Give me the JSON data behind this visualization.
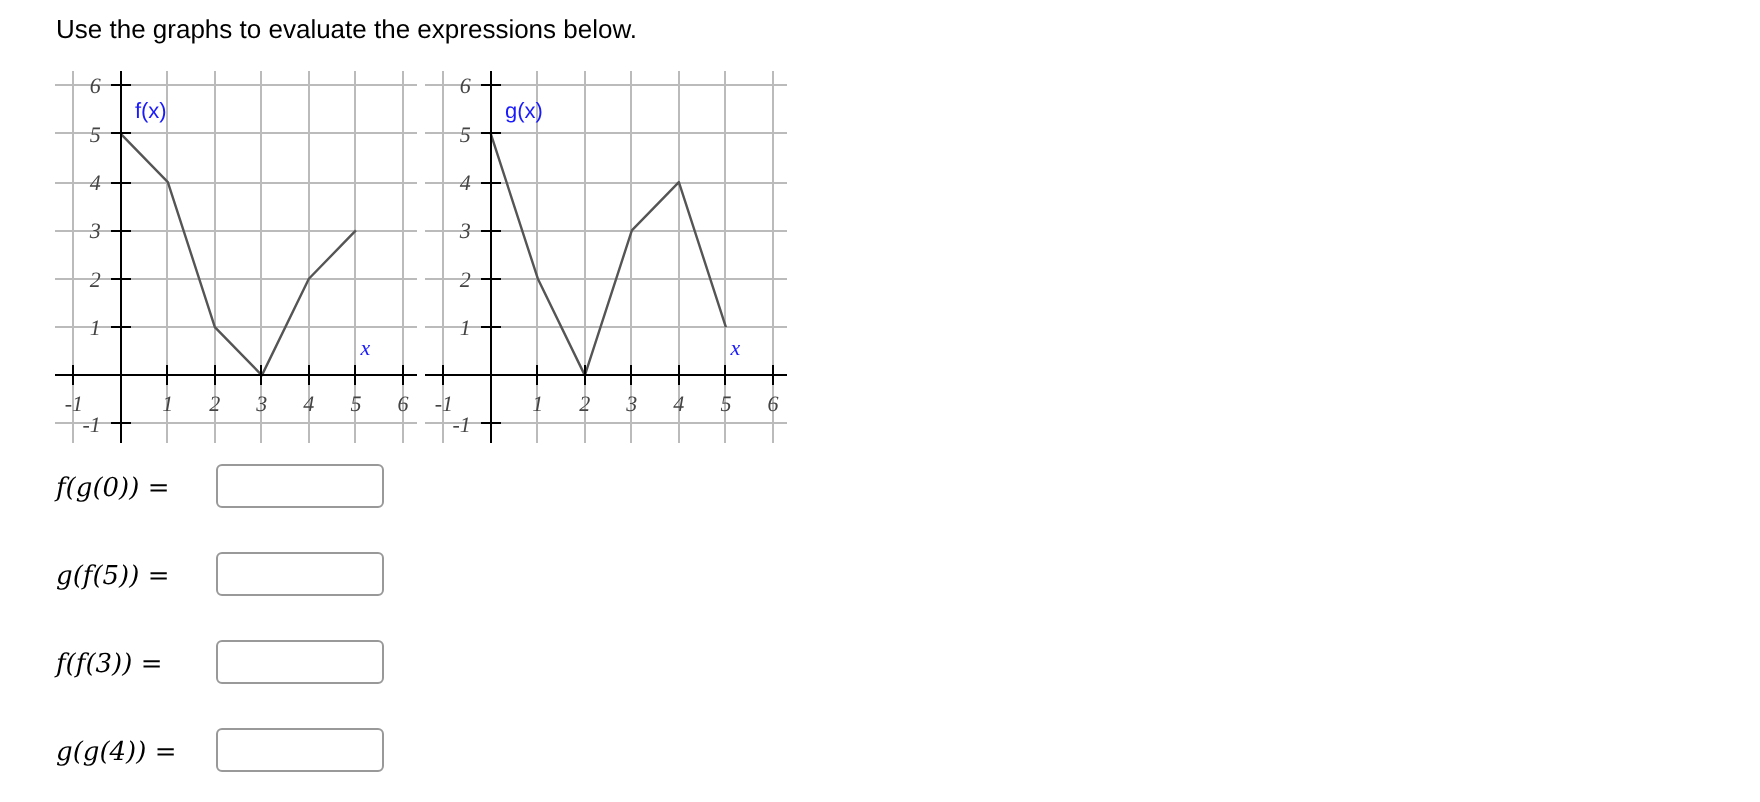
{
  "chart_data": [
    {
      "type": "line",
      "title": "Use the graphs to evaluate the expressions below.",
      "xlabel": "x",
      "x": [
        0,
        1,
        2,
        3,
        4,
        5
      ],
      "series": [
        {
          "name": "f(x)",
          "color": "#555555",
          "values": [
            5,
            4,
            1,
            0,
            2,
            3
          ]
        }
      ],
      "xlim": [
        -1.4,
        6.3
      ],
      "ylim": [
        -1.4,
        6.3
      ],
      "xticks": [
        -1,
        1,
        2,
        3,
        4,
        5,
        6
      ],
      "yticks": [
        -1,
        1,
        2,
        3,
        4,
        5,
        6
      ],
      "grid": true,
      "marker": "none",
      "line_style": "solid"
    },
    {
      "type": "line",
      "xlabel": "x",
      "x": [
        0,
        1,
        2,
        3,
        4,
        5
      ],
      "series": [
        {
          "name": "g(x)",
          "color": "#555555",
          "values": [
            5,
            2,
            0,
            3,
            4,
            1
          ]
        }
      ],
      "xlim": [
        -1.4,
        6.3
      ],
      "ylim": [
        -1.4,
        6.3
      ],
      "xticks": [
        -1,
        1,
        2,
        3,
        4,
        5,
        6
      ],
      "yticks": [
        -1,
        1,
        2,
        3,
        4,
        5,
        6
      ],
      "grid": true,
      "marker": "none",
      "line_style": "solid"
    },
    {
      "type": "other",
      "annotations": [
        "f(g(0)) =",
        "g(f(5)) =",
        "f(f(3)) =",
        "g(g(4)) ="
      ]
    }
  ]
}
